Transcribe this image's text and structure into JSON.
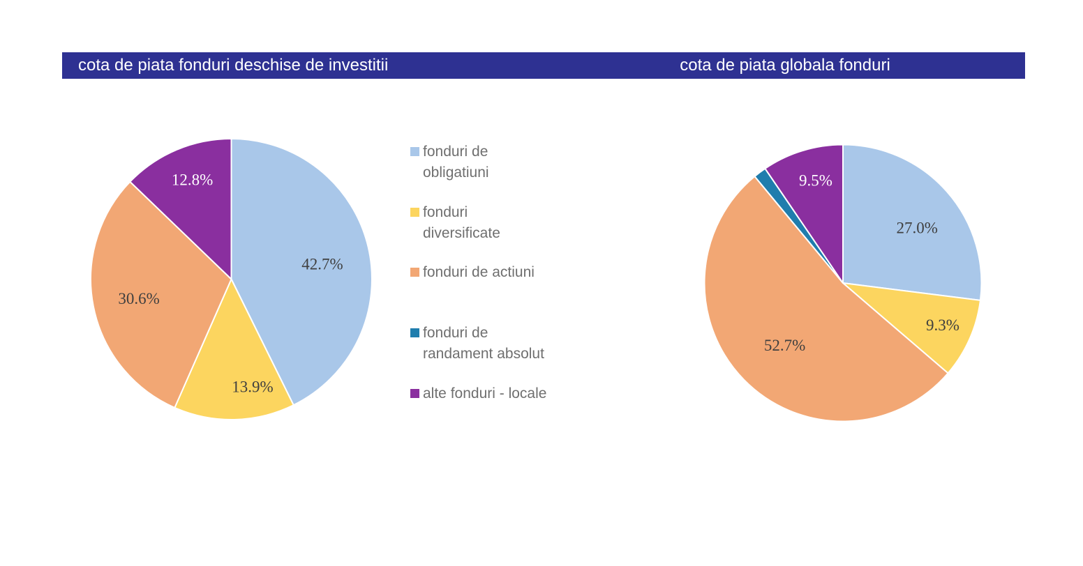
{
  "titles": {
    "left": "cota de piata fonduri deschise de investitii",
    "right": "cota de piata globala fonduri"
  },
  "colors": {
    "title_bar": "#2e3192",
    "title_text": "#ffffff",
    "slice_blue": "#a9c7e9",
    "slice_yellow": "#fcd55f",
    "slice_orange": "#f2a774",
    "slice_teal": "#227dad",
    "slice_purple": "#8a2f9f",
    "label_dark": "#3f3f3f",
    "label_light": "#ffffff",
    "legend_text": "#6f6f6f",
    "background": "#ffffff"
  },
  "legend": {
    "items": [
      {
        "label": "fonduri de obligatiuni",
        "lines": [
          "fonduri de",
          "obligatiuni"
        ],
        "color": "#a9c7e9"
      },
      {
        "label": "fonduri diversificate",
        "lines": [
          "fonduri",
          "diversificate"
        ],
        "color": "#fcd55f"
      },
      {
        "label": "fonduri de actiuni",
        "lines": [
          "fonduri de actiuni"
        ],
        "color": "#f2a774"
      },
      {
        "label": "fonduri de randament absolut",
        "lines": [
          "fonduri de",
          "randament absolut"
        ],
        "color": "#1f7dad"
      },
      {
        "label": "alte fonduri - locale",
        "lines": [
          "alte fonduri - locale"
        ],
        "color": "#8a2f9f"
      }
    ]
  },
  "chart_data": [
    {
      "type": "pie",
      "title": "cota de piata fonduri deschise de investitii",
      "unit": "%",
      "start_angle_deg": 0,
      "direction": "clockwise",
      "legend_position": "right",
      "slices": [
        {
          "name": "fonduri de obligatiuni",
          "value": 42.7,
          "label": "42.7%",
          "color": "#a9c7e9",
          "label_color": "#3f3f3f"
        },
        {
          "name": "fonduri diversificate",
          "value": 13.9,
          "label": "13.9%",
          "color": "#fcd55f",
          "label_color": "#3f3f3f"
        },
        {
          "name": "fonduri de actiuni",
          "value": 30.6,
          "label": "30.6%",
          "color": "#f2a774",
          "label_color": "#3f3f3f"
        },
        {
          "name": "alte fonduri - locale",
          "value": 12.8,
          "label": "12.8%",
          "color": "#8a2f9f",
          "label_color": "#ffffff"
        }
      ]
    },
    {
      "type": "pie",
      "title": "cota de piata globala fonduri",
      "unit": "%",
      "start_angle_deg": 0,
      "direction": "clockwise",
      "slices": [
        {
          "name": "fonduri de obligatiuni",
          "value": 27.0,
          "label": "27.0%",
          "color": "#a9c7e9",
          "label_color": "#3f3f3f"
        },
        {
          "name": "fonduri diversificate",
          "value": 9.3,
          "label": "9.3%",
          "color": "#fcd55f",
          "label_color": "#3f3f3f"
        },
        {
          "name": "fonduri de actiuni",
          "value": 52.7,
          "label": "52.7%",
          "color": "#f2a774",
          "label_color": "#3f3f3f"
        },
        {
          "name": "fonduri de randament absolut",
          "value": 1.5,
          "label": "",
          "color": "#1f7dad",
          "label_color": "#ffffff"
        },
        {
          "name": "alte fonduri - locale",
          "value": 9.5,
          "label": "9.5%",
          "color": "#8a2f9f",
          "label_color": "#ffffff"
        }
      ]
    }
  ]
}
